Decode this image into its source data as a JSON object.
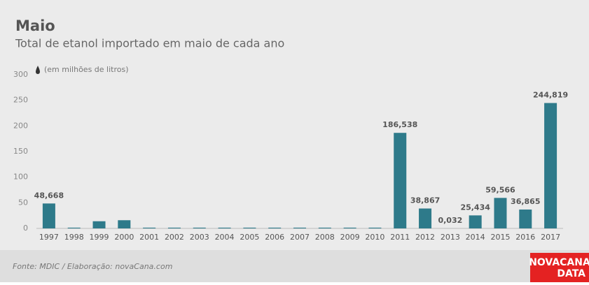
{
  "chart_data": {
    "type": "bar",
    "title": "Maio",
    "subtitle": "Total de etanol importado em maio de cada ano",
    "unit_note": "(em milhões de litros)",
    "categories": [
      "1997",
      "1998",
      "1999",
      "2000",
      "2001",
      "2002",
      "2003",
      "2004",
      "2005",
      "2006",
      "2007",
      "2008",
      "2009",
      "2010",
      "2011",
      "2012",
      "2013",
      "2014",
      "2015",
      "2016",
      "2017"
    ],
    "values": [
      48.668,
      1.5,
      14,
      16,
      1.5,
      1.5,
      1.5,
      1.5,
      1.5,
      1.5,
      1.5,
      1.5,
      1.5,
      1.5,
      186.538,
      38.867,
      0.032,
      25.434,
      59.566,
      36.865,
      244.819
    ],
    "value_labels": [
      "48,668",
      null,
      null,
      null,
      null,
      null,
      null,
      null,
      null,
      null,
      null,
      null,
      null,
      null,
      "186,538",
      "38,867",
      "0,032",
      "25,434",
      "59,566",
      "36,865",
      "244,819"
    ],
    "color": "#2e7a8a",
    "ylim": [
      0,
      300
    ],
    "yticks": [
      0,
      50,
      100,
      150,
      200,
      250,
      300
    ],
    "grid": false,
    "source": "Fonte: MDIC / Elaboração: novaCana.com",
    "logo": [
      "NOVACANA",
      "DATA"
    ]
  }
}
